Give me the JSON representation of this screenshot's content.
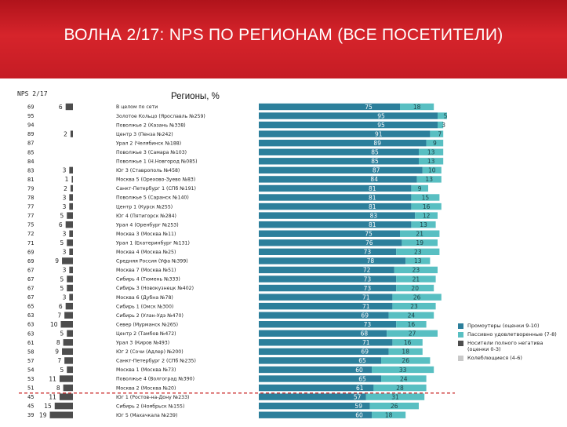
{
  "title": "ВОЛНА 2/17: NPS ПО РЕГИОНАМ (ВСЕ ПОСЕТИТЕЛИ)",
  "nps_header": "NPS 2/17",
  "regions_header": "Регионы, %",
  "colors": {
    "header_red": "#c51c24",
    "promoters": "#2c7f9b",
    "passive": "#58bfc2",
    "detractors": "#4d4d4d",
    "hesitant": "#c9c9c9",
    "separator": "#c00000"
  },
  "legend": [
    {
      "label": "Промоутеры (оценки 9-10)",
      "color": "#2c7f9b"
    },
    {
      "label": "Пассивно удовлетворенные (7-8)",
      "color": "#58bfc2"
    },
    {
      "label": "Носители полного негатива (оценки 0-3)",
      "color": "#4d4d4d"
    },
    {
      "label": "Колеблющиеся (4-6)",
      "color": "#c9c9c9"
    }
  ],
  "chart_data": {
    "type": "bar",
    "stacked": true,
    "orientation": "horizontal",
    "xlim": [
      0,
      100
    ],
    "separator_after_row": 32,
    "series_names": [
      "Промоутеры (оценки 9-10)",
      "Пассивно удовлетворенные (7-8)",
      "Носители полного негатива (оценки 0-3)",
      "Колеблющиеся (4-6)"
    ],
    "rows": [
      {
        "nps": "69",
        "region": "В целом по сети",
        "promoters": 75,
        "passive": 18,
        "detractors": 6,
        "promoters_label": "75"
      },
      {
        "nps": "95",
        "region": "Золотое Кольцо (Ярославль №259)",
        "promoters": 95,
        "passive": 5,
        "detractors": null
      },
      {
        "nps": "94",
        "region": "Поволжье 2 (Казань №338)",
        "promoters": 95,
        "passive": 3,
        "detractors": null
      },
      {
        "nps": "89",
        "region": "Центр 3 (Пенза №242)",
        "promoters": 91,
        "passive": 7,
        "detractors": 2
      },
      {
        "nps": "87",
        "region": "Урал 2 (Челябинск №188)",
        "promoters": 89,
        "passive": 9,
        "detractors": null
      },
      {
        "nps": "85",
        "region": "Поволжье 3 (Самара №103)",
        "promoters": 85,
        "passive": 13,
        "detractors": null
      },
      {
        "nps": "84",
        "region": "Поволжье 1 (Н.Новгород №085)",
        "promoters": 85,
        "passive": 13,
        "detractors": null
      },
      {
        "nps": "83",
        "region": "Юг 3 (Ставрополь №458)",
        "promoters": 87,
        "passive": 10,
        "detractors": 3
      },
      {
        "nps": "81",
        "region": "Москва 5 (Орехово-Зуево №83)",
        "promoters": 84,
        "passive": 13,
        "detractors": 1
      },
      {
        "nps": "79",
        "region": "Санкт-Петербург 1 (СПб №191)",
        "promoters": 81,
        "passive": 9,
        "detractors": 2
      },
      {
        "nps": "78",
        "region": "Поволжье 5 (Саранск №140)",
        "promoters": 81,
        "passive": 15,
        "detractors": 3
      },
      {
        "nps": "77",
        "region": "Центр 1 (Курск №255)",
        "promoters": 81,
        "passive": 16,
        "detractors": 3
      },
      {
        "nps": "77",
        "region": "Юг 4 (Пятигорск №284)",
        "promoters": 83,
        "passive": 12,
        "detractors": 5
      },
      {
        "nps": "75",
        "region": "Урал 4 (Оренбург №253)",
        "promoters": 81,
        "passive": 13,
        "detractors": 6
      },
      {
        "nps": "72",
        "region": "Москва 3 (Москва №11)",
        "promoters": 75,
        "passive": 21,
        "detractors": 3
      },
      {
        "nps": "71",
        "region": "Урал 1 (Екатеринбург №131)",
        "promoters": 76,
        "passive": 19,
        "detractors": 5
      },
      {
        "nps": "69",
        "region": "Москва 4 (Москва №25)",
        "promoters": 73,
        "passive": 23,
        "detractors": 3
      },
      {
        "nps": "69",
        "region": "Средняя Россия (Уфа №399)",
        "promoters": 78,
        "passive": 13,
        "detractors": 9
      },
      {
        "nps": "67",
        "region": "Москва 7 (Москва №51)",
        "promoters": 72,
        "passive": 23,
        "detractors": 3
      },
      {
        "nps": "67",
        "region": "Сибирь 4 (Тюмень №333)",
        "promoters": 73,
        "passive": 21,
        "detractors": 5
      },
      {
        "nps": "67",
        "region": "Сибирь 3 (Новокузнецк №402)",
        "promoters": 73,
        "passive": 20,
        "detractors": 5
      },
      {
        "nps": "67",
        "region": "Москва 6 (Дубна №78)",
        "promoters": 71,
        "passive": 26,
        "detractors": 3
      },
      {
        "nps": "65",
        "region": "Сибирь 1 (Омск №300)",
        "promoters": 71,
        "passive": 23,
        "detractors": 6
      },
      {
        "nps": "63",
        "region": "Сибирь 2 (Улан-Удэ №470)",
        "promoters": 69,
        "passive": 24,
        "detractors": 7
      },
      {
        "nps": "63",
        "region": "Север (Мурманск №265)",
        "promoters": 73,
        "passive": 16,
        "detractors": 10
      },
      {
        "nps": "63",
        "region": "Центр 2 (Тамбов №472)",
        "promoters": 68,
        "passive": 27,
        "detractors": 5
      },
      {
        "nps": "61",
        "region": "Урал 3 (Киров №493)",
        "promoters": 71,
        "passive": 16,
        "detractors": 8
      },
      {
        "nps": "58",
        "region": "Юг 2 (Сочи (Адлер) №200)",
        "promoters": 69,
        "passive": 18,
        "detractors": 9
      },
      {
        "nps": "57",
        "region": "Санкт-Петербург 2 (СПб №235)",
        "promoters": 65,
        "passive": 26,
        "detractors": 7
      },
      {
        "nps": "54",
        "region": "Москва 1 (Москва №73)",
        "promoters": 60,
        "passive": 33,
        "detractors": 5
      },
      {
        "nps": "53",
        "region": "Поволжье 4 (Волгоград №390)",
        "promoters": 65,
        "passive": 24,
        "detractors": 11
      },
      {
        "nps": "51",
        "region": "Москва 2 (Москва №20)",
        "promoters": 61,
        "passive": 28,
        "detractors": 8
      },
      {
        "nps": "45",
        "region": "Юг 1 (Ростов-на-Дону №233)",
        "promoters": 57,
        "passive": 31,
        "detractors": 11
      },
      {
        "nps": "45",
        "region": "Сибирь 2 (Ноябрьск №155)",
        "promoters": 59,
        "passive": 26,
        "detractors": 15
      },
      {
        "nps": "39",
        "region": "Юг 5 (Махачкала №239)",
        "promoters": 60,
        "passive": 18,
        "detractors": 19
      }
    ]
  }
}
